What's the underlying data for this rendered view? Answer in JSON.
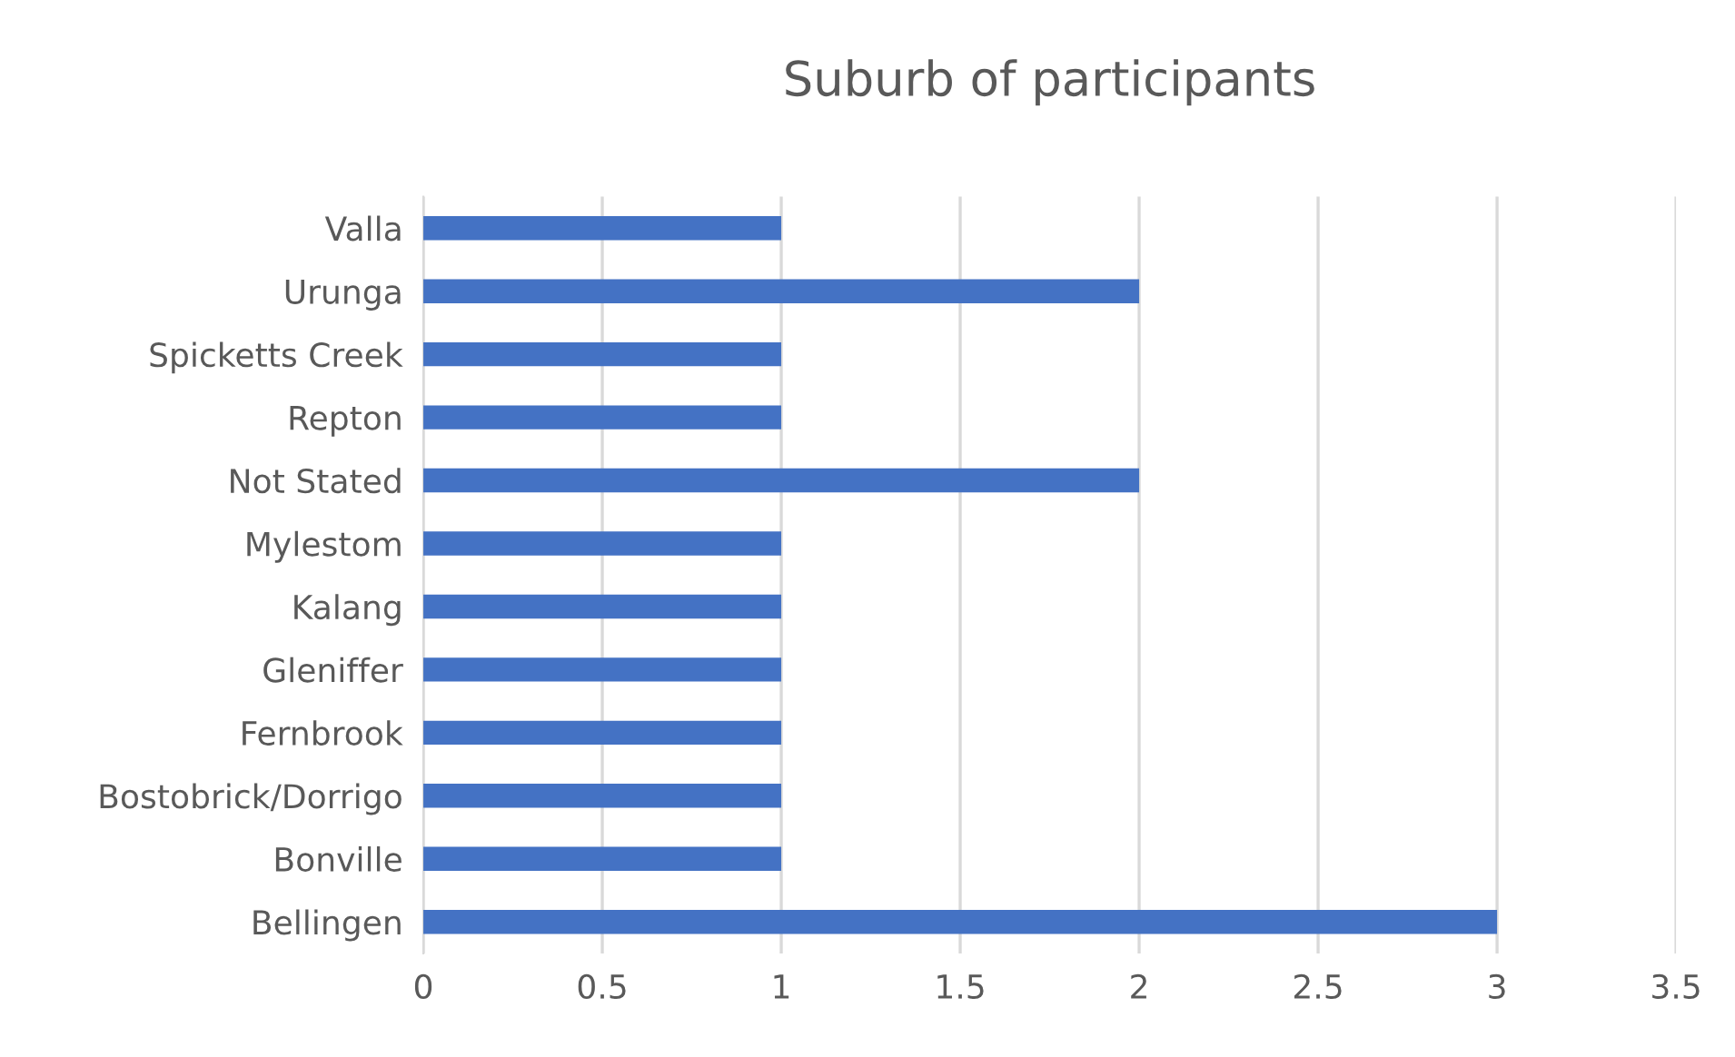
{
  "chart_data": {
    "type": "bar",
    "title": "Suburb of participants",
    "orientation": "horizontal",
    "categories": [
      "Valla",
      "Urunga",
      "Spicketts Creek",
      "Repton",
      "Not Stated",
      "Mylestom",
      "Kalang",
      "Gleniffer",
      "Fernbrook",
      "Bostobrick/Dorrigo",
      "Bonville",
      "Bellingen"
    ],
    "values": [
      1,
      2,
      1,
      1,
      2,
      1,
      1,
      1,
      1,
      1,
      1,
      3
    ],
    "color": "#4472c4",
    "xlim": [
      0,
      3.5
    ],
    "xticks": [
      0,
      0.5,
      1,
      1.5,
      2,
      2.5,
      3,
      3.5
    ],
    "grid": "x",
    "legend": false
  }
}
